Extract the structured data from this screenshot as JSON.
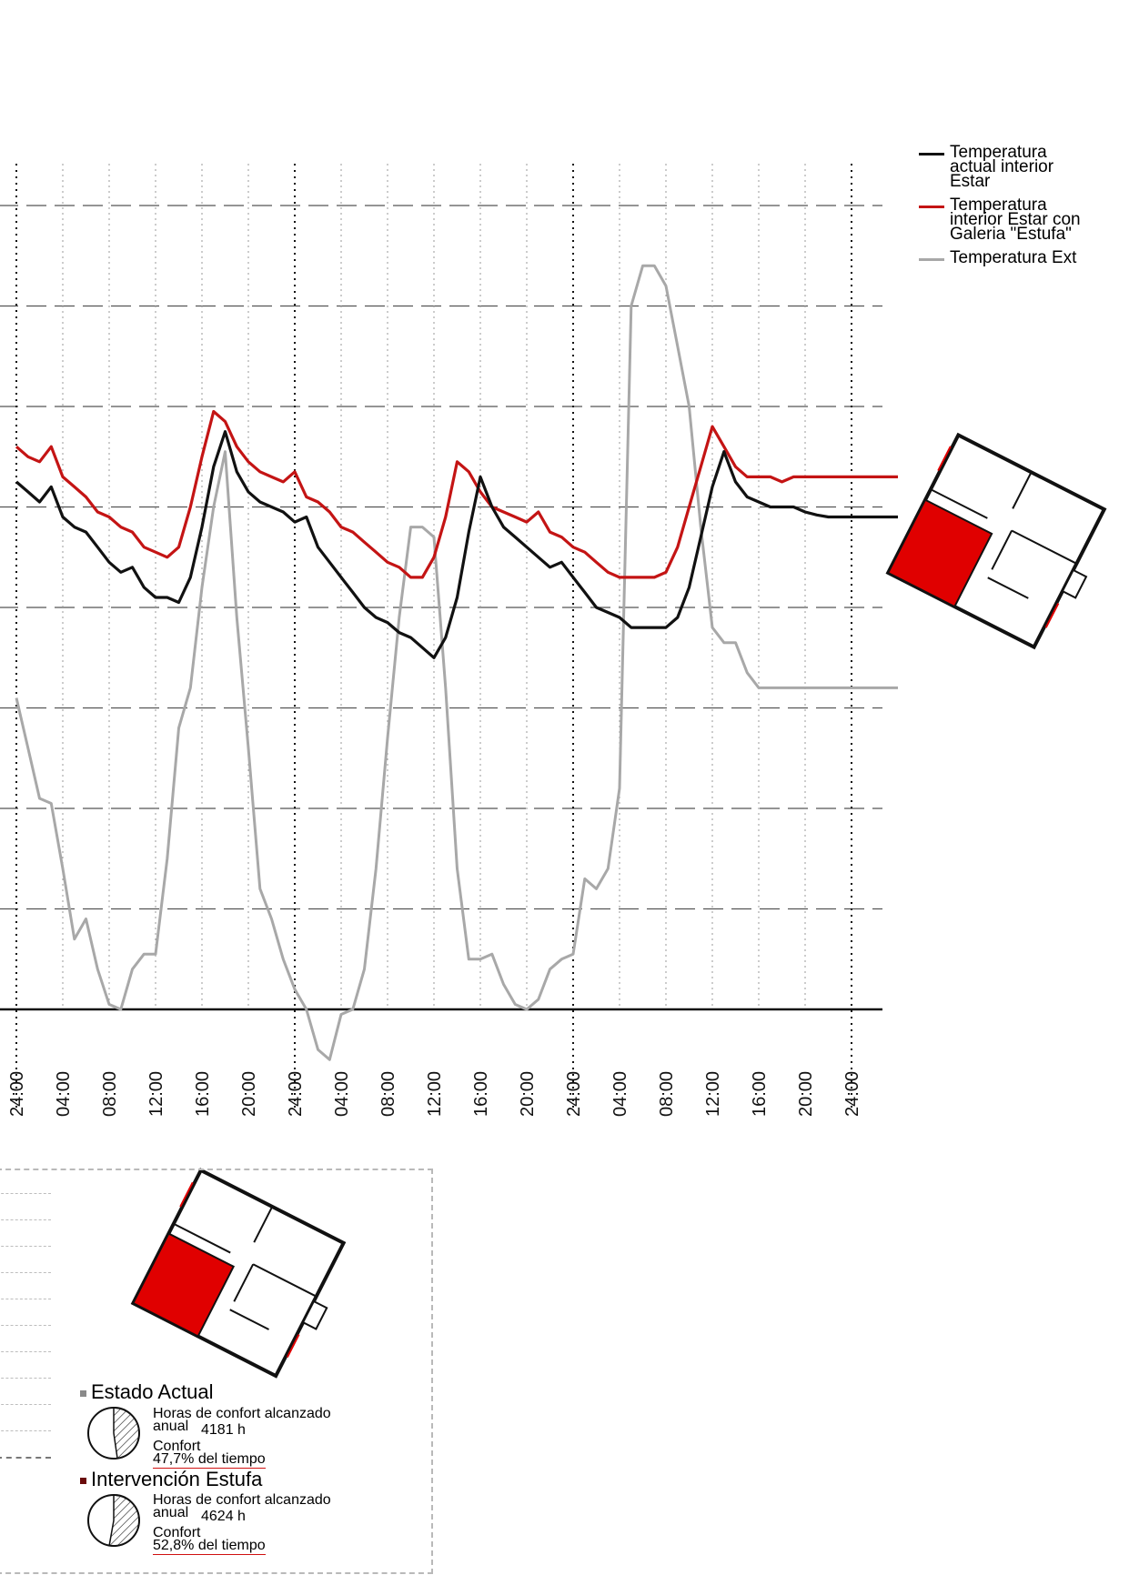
{
  "chart_data": {
    "type": "line",
    "title": "",
    "xlabel": "",
    "ylabel": "",
    "x_tick_labels": [
      "24:00",
      "04:00",
      "08:00",
      "12:00",
      "16:00",
      "20:00",
      "24:00",
      "04:00",
      "08:00",
      "12:00",
      "16:00",
      "20:00",
      "24:00",
      "04:00",
      "08:00",
      "12:00",
      "16:00",
      "20:00",
      "24:00"
    ],
    "x_tick_hours": [
      0,
      4,
      8,
      12,
      16,
      20,
      24,
      28,
      32,
      36,
      40,
      44,
      48,
      52,
      56,
      60,
      64,
      68,
      72
    ],
    "x_range": [
      0,
      76
    ],
    "y_range": [
      0,
      8
    ],
    "y_unit": "gridline index (no numeric labels visible)",
    "grid": true,
    "legend_position": "top-right",
    "series": [
      {
        "name": "Temperatura actual interior Estar",
        "color": "#111111",
        "x": [
          0,
          1,
          2,
          3,
          4,
          5,
          6,
          7,
          8,
          9,
          10,
          11,
          12,
          13,
          14,
          15,
          16,
          17,
          18,
          19,
          20,
          21,
          22,
          23,
          24,
          25,
          26,
          27,
          28,
          29,
          30,
          31,
          32,
          33,
          34,
          35,
          36,
          37,
          38,
          39,
          40,
          41,
          42,
          43,
          44,
          45,
          46,
          47,
          48,
          49,
          50,
          51,
          52,
          53,
          54,
          55,
          56,
          57,
          58,
          59,
          60,
          61,
          62,
          63,
          64,
          65,
          66,
          67,
          68,
          69,
          70,
          71,
          72,
          73,
          74,
          75,
          76
        ],
        "values": [
          5.25,
          5.15,
          5.05,
          5.2,
          4.9,
          4.8,
          4.75,
          4.6,
          4.45,
          4.35,
          4.4,
          4.2,
          4.1,
          4.1,
          4.05,
          4.3,
          4.8,
          5.4,
          5.75,
          5.35,
          5.15,
          5.05,
          5.0,
          4.95,
          4.85,
          4.9,
          4.6,
          4.45,
          4.3,
          4.15,
          4.0,
          3.9,
          3.85,
          3.75,
          3.7,
          3.6,
          3.5,
          3.7,
          4.1,
          4.75,
          5.3,
          5.0,
          4.8,
          4.7,
          4.6,
          4.5,
          4.4,
          4.45,
          4.3,
          4.15,
          4.0,
          3.95,
          3.9,
          3.8,
          3.8,
          3.8,
          3.8,
          3.9,
          4.2,
          4.7,
          5.2,
          5.55,
          5.25,
          5.1,
          5.05,
          5.0,
          5.0,
          5.0,
          4.95,
          4.92,
          4.9,
          4.9,
          4.9,
          4.9,
          4.9,
          4.9,
          4.9
        ],
        "visible_x_range": [
          0,
          76
        ]
      },
      {
        "name": "Temperatura interior Estar con Galeria \"Estufa\"",
        "color": "#c41414",
        "x": [
          0,
          1,
          2,
          3,
          4,
          5,
          6,
          7,
          8,
          9,
          10,
          11,
          12,
          13,
          14,
          15,
          16,
          17,
          18,
          19,
          20,
          21,
          22,
          23,
          24,
          25,
          26,
          27,
          28,
          29,
          30,
          31,
          32,
          33,
          34,
          35,
          36,
          37,
          38,
          39,
          40,
          41,
          42,
          43,
          44,
          45,
          46,
          47,
          48,
          49,
          50,
          51,
          52,
          53,
          54,
          55,
          56,
          57,
          58,
          59,
          60,
          61,
          62,
          63,
          64,
          65,
          66,
          67,
          68,
          69,
          70,
          71,
          72,
          73,
          74,
          75,
          76
        ],
        "values": [
          5.6,
          5.5,
          5.45,
          5.6,
          5.3,
          5.2,
          5.1,
          4.95,
          4.9,
          4.8,
          4.75,
          4.6,
          4.55,
          4.5,
          4.6,
          5.0,
          5.5,
          5.95,
          5.85,
          5.6,
          5.45,
          5.35,
          5.3,
          5.25,
          5.35,
          5.1,
          5.05,
          4.95,
          4.8,
          4.75,
          4.65,
          4.55,
          4.45,
          4.4,
          4.3,
          4.3,
          4.5,
          4.9,
          5.45,
          5.35,
          5.15,
          5.0,
          4.95,
          4.9,
          4.85,
          4.95,
          4.75,
          4.7,
          4.6,
          4.55,
          4.45,
          4.35,
          4.3,
          4.3,
          4.3,
          4.3,
          4.35,
          4.6,
          5.0,
          5.4,
          5.8,
          5.6,
          5.4,
          5.3,
          5.3,
          5.3,
          5.25,
          5.3,
          5.3,
          5.3,
          5.3,
          5.3,
          5.3,
          5.3,
          5.3,
          5.3,
          5.3
        ],
        "visible_x_range": [
          0,
          76
        ]
      },
      {
        "name": "Temperatura Ext",
        "color": "#a8a8a8",
        "x": [
          0,
          1,
          2,
          3,
          4,
          5,
          6,
          7,
          8,
          9,
          10,
          11,
          12,
          13,
          14,
          15,
          16,
          17,
          18,
          19,
          20,
          21,
          22,
          23,
          24,
          25,
          26,
          27,
          28,
          29,
          30,
          31,
          32,
          33,
          34,
          35,
          36,
          37,
          38,
          39,
          40,
          41,
          42,
          43,
          44,
          45,
          46,
          47,
          48,
          49,
          50,
          51,
          52,
          53,
          54,
          55,
          56,
          57,
          58,
          59,
          60,
          61,
          62,
          63,
          64,
          65,
          66,
          67,
          68,
          69,
          70,
          71,
          72,
          73,
          74,
          75,
          76
        ],
        "values": [
          3.1,
          2.6,
          2.1,
          2.05,
          1.4,
          0.7,
          0.9,
          0.4,
          0.05,
          0.0,
          0.4,
          0.55,
          0.55,
          1.5,
          2.8,
          3.2,
          4.2,
          5.0,
          5.55,
          3.9,
          2.6,
          1.2,
          0.9,
          0.5,
          0.2,
          0.0,
          -0.4,
          -0.5,
          -0.05,
          0.0,
          0.4,
          1.4,
          2.7,
          3.9,
          4.8,
          4.8,
          4.7,
          3.2,
          1.4,
          0.5,
          0.5,
          0.55,
          0.25,
          0.05,
          0.0,
          0.1,
          0.4,
          0.5,
          0.55,
          1.3,
          1.2,
          1.4,
          2.2,
          7.0,
          7.4,
          7.4,
          7.2,
          6.6,
          6.0,
          4.8,
          3.8,
          3.65,
          3.65,
          3.35,
          3.2,
          3.2,
          3.2,
          3.2,
          3.2,
          3.2,
          3.2,
          3.2,
          3.2,
          3.2,
          3.2,
          3.2,
          3.2
        ],
        "visible_x_range": [
          0,
          76
        ]
      }
    ]
  },
  "legend": {
    "items": [
      {
        "label": "Temperatura\nactual interior\nEstar",
        "color": "#111111"
      },
      {
        "label": "Temperatura\ninterior Estar con\nGaleria \"Estufa\"",
        "color": "#c41414"
      },
      {
        "label": "Temperatura Ext",
        "color": "#a8a8a8"
      }
    ]
  },
  "panel": {
    "estado_actual": {
      "title": "Estado Actual",
      "bullet_color": "#8a8a8a",
      "line1": "Horas de confort alcanzado",
      "line2": "anual",
      "hours": "4181 h",
      "confort_label": "Confort",
      "percent_text": "47,7% del tiempo",
      "percent_value": 47.7
    },
    "intervencion": {
      "title": "Intervención Estufa",
      "bullet_color": "#6a0b0b",
      "line1": "Horas de confort alcanzado",
      "line2": "anual",
      "hours": "4624 h",
      "confort_label": "Confort",
      "percent_text": "52,8% del tiempo",
      "percent_value": 52.8
    }
  },
  "colors": {
    "highlight_room": "#e00000",
    "grid": "#555555",
    "axis": "#111111"
  }
}
